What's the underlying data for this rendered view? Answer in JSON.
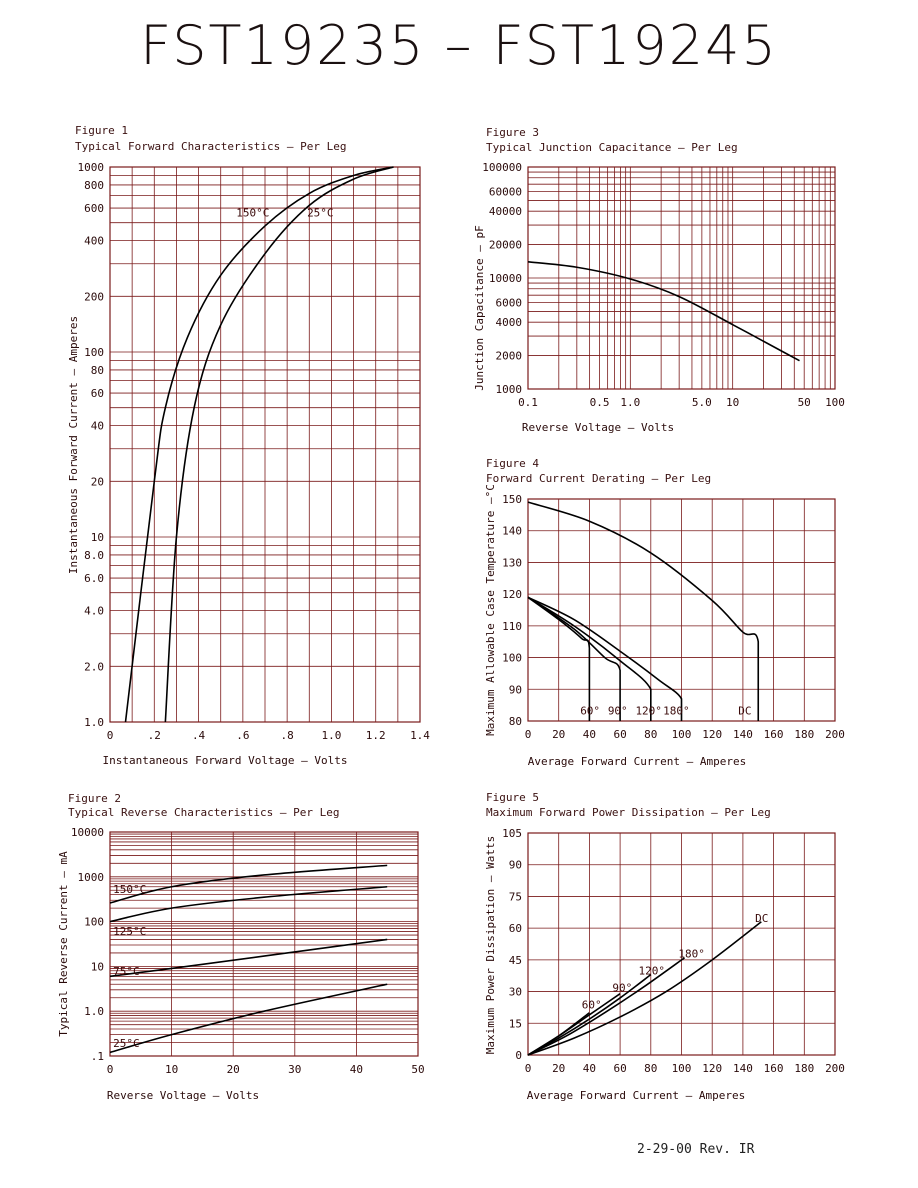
{
  "page": {
    "title": "FST19235  –  FST19245",
    "footer": "2-29-00    Rev. IR"
  },
  "chart_data": [
    {
      "id": "fig1",
      "type": "line",
      "figure_label": "Figure 1",
      "title": "Typical Forward Characteristics – Per Leg",
      "xlabel": "Instantaneous Forward Voltage – Volts",
      "ylabel": "Instantaneous Forward Current – Amperes",
      "x_scale": "linear",
      "y_scale": "log",
      "xlim": [
        0,
        1.4
      ],
      "ylim": [
        1,
        1000
      ],
      "x_ticks": [
        0,
        0.2,
        0.4,
        0.6,
        0.8,
        1.0,
        1.2,
        1.4
      ],
      "x_tick_labels": [
        "0",
        ".2",
        ".4",
        ".6",
        ".8",
        "1.0",
        "1.2",
        "1.4"
      ],
      "y_ticks": [
        1,
        2,
        4,
        6,
        8,
        10,
        20,
        40,
        60,
        80,
        100,
        200,
        400,
        600,
        800,
        1000
      ],
      "y_tick_labels": [
        "1.0",
        "2.0",
        "4.0",
        "6.0",
        "8.0",
        "10",
        "20",
        "40",
        "60",
        "80",
        "100",
        "200",
        "400",
        "600",
        "800",
        "1000"
      ],
      "grid": true,
      "series": [
        {
          "name": "150°C",
          "x": [
            0.07,
            0.2,
            0.25,
            0.35,
            0.5,
            0.7,
            0.9,
            1.1,
            1.28
          ],
          "y": [
            1,
            20,
            50,
            120,
            260,
            480,
            720,
            900,
            1000
          ]
        },
        {
          "name": "25°C",
          "x": [
            0.25,
            0.3,
            0.38,
            0.5,
            0.7,
            0.9,
            1.1,
            1.28
          ],
          "y": [
            1,
            10,
            50,
            140,
            340,
            620,
            860,
            1000
          ]
        }
      ],
      "annotations": [
        {
          "text": "150°C",
          "x": 0.57,
          "y": 540
        },
        {
          "text": "25°C",
          "x": 0.89,
          "y": 540
        }
      ]
    },
    {
      "id": "fig2",
      "type": "line",
      "figure_label": "Figure 2",
      "title": "Typical Reverse Characteristics – Per Leg",
      "xlabel": "Reverse Voltage – Volts",
      "ylabel": "Typical Reverse Current – mA",
      "x_scale": "linear",
      "y_scale": "log",
      "xlim": [
        0,
        50
      ],
      "ylim": [
        0.1,
        10000
      ],
      "x_ticks": [
        0,
        10,
        20,
        30,
        40,
        50
      ],
      "x_tick_labels": [
        "0",
        "10",
        "20",
        "30",
        "40",
        "50"
      ],
      "y_ticks": [
        0.1,
        1,
        10,
        100,
        1000,
        10000
      ],
      "y_tick_labels": [
        ".1",
        "1.0",
        "10",
        "100",
        "1000",
        "10000"
      ],
      "grid": true,
      "series": [
        {
          "name": "150°C",
          "x": [
            0,
            10,
            25,
            45
          ],
          "y": [
            260,
            600,
            1100,
            1800
          ]
        },
        {
          "name": "125°C",
          "x": [
            0,
            10,
            25,
            45
          ],
          "y": [
            100,
            200,
            350,
            600
          ]
        },
        {
          "name": "75°C",
          "x": [
            0,
            10,
            25,
            45
          ],
          "y": [
            6,
            9,
            17,
            40
          ]
        },
        {
          "name": "25°C",
          "x": [
            0,
            10,
            25,
            45
          ],
          "y": [
            0.12,
            0.3,
            1.0,
            4.0
          ]
        }
      ],
      "annotations": [
        {
          "text": "150°C",
          "x": 0.5,
          "y": 430
        },
        {
          "text": "125°C",
          "x": 0.5,
          "y": 50
        },
        {
          "text": "75°C",
          "x": 0.5,
          "y": 6.5
        },
        {
          "text": "25°C",
          "x": 0.5,
          "y": 0.16
        }
      ]
    },
    {
      "id": "fig3",
      "type": "line",
      "figure_label": "Figure 3",
      "title": "Typical Junction Capacitance – Per Leg",
      "xlabel": "Reverse Voltage – Volts",
      "ylabel": "Junction Capacitance – pF",
      "x_scale": "log",
      "y_scale": "log",
      "xlim": [
        0.1,
        100
      ],
      "ylim": [
        1000,
        100000
      ],
      "x_ticks": [
        0.1,
        0.5,
        1.0,
        5.0,
        10,
        50,
        100
      ],
      "x_tick_labels": [
        "0.1",
        "0.5",
        "1.0",
        "5.0",
        "10",
        "50",
        "100"
      ],
      "y_ticks": [
        1000,
        2000,
        4000,
        6000,
        10000,
        20000,
        40000,
        60000,
        100000
      ],
      "y_tick_labels": [
        "1000",
        "2000",
        "4000",
        "6000",
        "10000",
        "20000",
        "40000",
        "60000",
        "100000"
      ],
      "grid": true,
      "series": [
        {
          "name": "",
          "x": [
            0.1,
            0.3,
            1.0,
            3.0,
            10,
            30,
            45
          ],
          "y": [
            14000,
            12500,
            9800,
            6800,
            3800,
            2200,
            1800
          ]
        }
      ]
    },
    {
      "id": "fig4",
      "type": "line",
      "figure_label": "Figure 4",
      "title": "Forward Current Derating – Per Leg",
      "xlabel": "Average Forward Current – Amperes",
      "ylabel": "Maximum Allowable Case Temperature –°C",
      "x_scale": "linear",
      "y_scale": "linear",
      "xlim": [
        0,
        200
      ],
      "ylim": [
        80,
        150
      ],
      "x_ticks": [
        0,
        20,
        40,
        60,
        80,
        100,
        120,
        140,
        160,
        180,
        200
      ],
      "x_tick_labels": [
        "0",
        "20",
        "40",
        "60",
        "80",
        "100",
        "120",
        "140",
        "160",
        "180",
        "200"
      ],
      "y_ticks": [
        80,
        90,
        100,
        110,
        120,
        130,
        140,
        150
      ],
      "y_tick_labels": [
        "80",
        "90",
        "100",
        "110",
        "120",
        "130",
        "140",
        "150"
      ],
      "grid": true,
      "series": [
        {
          "name": "DC",
          "x": [
            0,
            40,
            80,
            120,
            140,
            150,
            150
          ],
          "y": [
            149,
            143,
            133,
            118,
            108,
            105,
            80
          ]
        },
        {
          "name": "180°",
          "x": [
            0,
            30,
            60,
            85,
            100,
            100
          ],
          "y": [
            119,
            112,
            102,
            93,
            87,
            80
          ]
        },
        {
          "name": "120°",
          "x": [
            0,
            30,
            60,
            80,
            80
          ],
          "y": [
            119,
            110,
            99,
            90,
            80
          ]
        },
        {
          "name": "90°",
          "x": [
            0,
            30,
            50,
            60,
            60
          ],
          "y": [
            119,
            109,
            100,
            96,
            80
          ]
        },
        {
          "name": "60°",
          "x": [
            0,
            20,
            35,
            40,
            40
          ],
          "y": [
            119,
            112,
            106,
            103,
            80
          ]
        }
      ],
      "annotations": [
        {
          "text": "60°",
          "x": 34,
          "y": 82
        },
        {
          "text": "90°",
          "x": 52,
          "y": 82
        },
        {
          "text": "120°",
          "x": 70,
          "y": 82
        },
        {
          "text": "180°",
          "x": 88,
          "y": 82
        },
        {
          "text": "DC",
          "x": 137,
          "y": 82
        }
      ]
    },
    {
      "id": "fig5",
      "type": "line",
      "figure_label": "Figure 5",
      "title": "Maximum Forward Power Dissipation – Per Leg",
      "xlabel": "Average Forward Current – Amperes",
      "ylabel": "Maximum Power Dissipation – Watts",
      "x_scale": "linear",
      "y_scale": "linear",
      "xlim": [
        0,
        200
      ],
      "ylim": [
        0,
        105
      ],
      "x_ticks": [
        0,
        20,
        40,
        60,
        80,
        100,
        120,
        140,
        160,
        180,
        200
      ],
      "x_tick_labels": [
        "0",
        "20",
        "40",
        "60",
        "80",
        "100",
        "120",
        "140",
        "160",
        "180",
        "200"
      ],
      "y_ticks": [
        0,
        15,
        30,
        45,
        60,
        75,
        90,
        105
      ],
      "y_tick_labels": [
        "0",
        "15",
        "30",
        "45",
        "60",
        "75",
        "90",
        "105"
      ],
      "grid": true,
      "series": [
        {
          "name": "DC",
          "x": [
            0,
            30,
            60,
            90,
            120,
            152
          ],
          "y": [
            0,
            8,
            18,
            30,
            45,
            63
          ]
        },
        {
          "name": "180°",
          "x": [
            0,
            25,
            50,
            75,
            102
          ],
          "y": [
            0,
            9,
            20,
            32,
            46
          ]
        },
        {
          "name": "120°",
          "x": [
            0,
            20,
            40,
            60,
            80
          ],
          "y": [
            0,
            8,
            17,
            27,
            38
          ]
        },
        {
          "name": "90°",
          "x": [
            0,
            20,
            40,
            60
          ],
          "y": [
            0,
            9,
            19,
            29
          ]
        },
        {
          "name": "60°",
          "x": [
            0,
            20,
            40
          ],
          "y": [
            0,
            9,
            20
          ]
        }
      ],
      "annotations": [
        {
          "text": "60°",
          "x": 35,
          "y": 22
        },
        {
          "text": "90°",
          "x": 55,
          "y": 30
        },
        {
          "text": "120°",
          "x": 72,
          "y": 38
        },
        {
          "text": "180°",
          "x": 98,
          "y": 46
        },
        {
          "text": "DC",
          "x": 148,
          "y": 63
        }
      ]
    }
  ],
  "colors": {
    "grid": "#7a1a1a",
    "curve": "#000000",
    "text": "#2a0a0a"
  }
}
